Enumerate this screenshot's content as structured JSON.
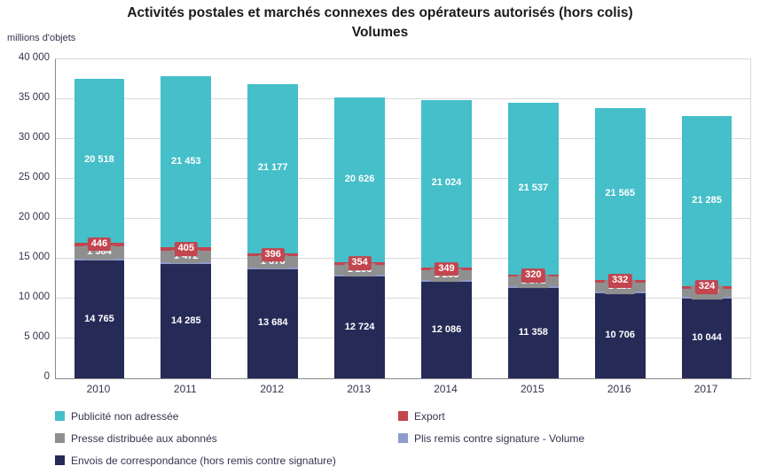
{
  "title": "Activités postales et marchés connexes des opérateurs autorisés (hors colis)",
  "subtitle": "Volumes",
  "unit_label": "millions d'objets",
  "colors": {
    "publicite": "#45BFC9",
    "export": "#C2454F",
    "presse": "#8F8F8F",
    "plis": "#8E9CCB",
    "envois": "#262A56"
  },
  "chart_data": {
    "type": "bar",
    "stacked": true,
    "title": "Activités postales et marchés connexes des opérateurs autorisés (hors colis)",
    "subtitle": "Volumes",
    "ylabel": "millions d'objets",
    "xlabel": "",
    "categories": [
      "2010",
      "2011",
      "2012",
      "2013",
      "2014",
      "2015",
      "2016",
      "2017"
    ],
    "series": [
      {
        "name": "Envois de correspondance (hors remis contre signature)",
        "color": "#262A56",
        "values": [
          14765,
          14285,
          13684,
          12724,
          12086,
          11358,
          10706,
          10044
        ],
        "labels_visible": true
      },
      {
        "name": "Plis remis contre signature - Volume",
        "color": "#8E9CCB",
        "values": [
          250,
          250,
          240,
          230,
          220,
          210,
          200,
          190
        ],
        "labels_visible": false,
        "estimated": true
      },
      {
        "name": "Presse distribuée aux abonnés",
        "color": "#8F8F8F",
        "values": [
          1584,
          1472,
          1376,
          1293,
          1233,
          1171,
          1115,
          1030
        ],
        "labels_visible": true
      },
      {
        "name": "Export",
        "color": "#C2454F",
        "values": [
          446,
          405,
          396,
          354,
          349,
          320,
          332,
          324
        ],
        "labels_visible": true
      },
      {
        "name": "Publicité non adressée",
        "color": "#45BFC9",
        "values": [
          20518,
          21453,
          21177,
          20626,
          21024,
          21537,
          21565,
          21285
        ],
        "labels_visible": true
      }
    ],
    "ylim": [
      0,
      40000
    ],
    "ytick_step": 5000,
    "yticks": [
      "0",
      "5 000",
      "10 000",
      "15 000",
      "20 000",
      "25 000",
      "30 000",
      "35 000",
      "40 000"
    ],
    "grid": true,
    "legend_position": "bottom"
  },
  "legend": {
    "columns": [
      {
        "items": [
          {
            "label": "Publicité non adressée",
            "color": "#45BFC9"
          },
          {
            "label": "Presse distribuée aux abonnés",
            "color": "#8F8F8F"
          },
          {
            "label": "Envois de correspondance (hors remis contre signature)",
            "color": "#262A56"
          }
        ]
      },
      {
        "items": [
          {
            "label": "Export",
            "color": "#C2454F"
          },
          {
            "label": "Plis remis contre signature - Volume",
            "color": "#8E9CCB"
          }
        ]
      }
    ]
  }
}
